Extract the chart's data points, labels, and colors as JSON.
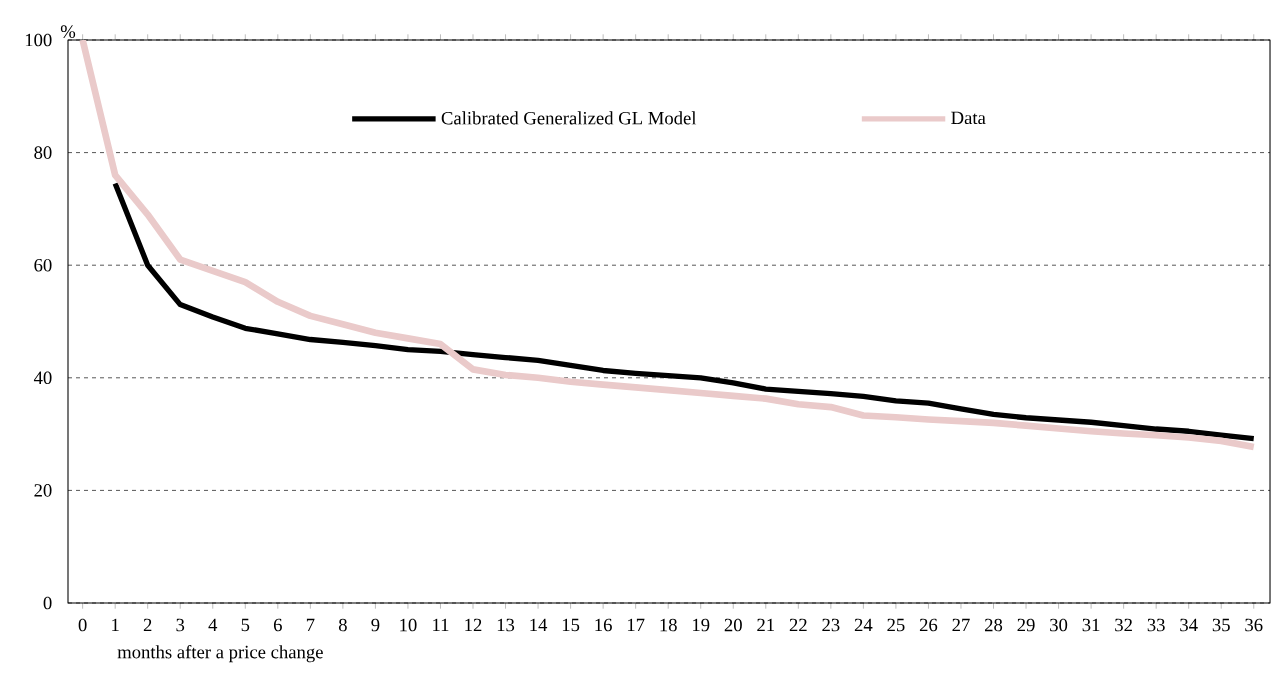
{
  "chart_data": {
    "type": "line",
    "ylabel": "%",
    "xlabel": "months after a price change",
    "categories": [
      "0",
      "1",
      "2",
      "3",
      "4",
      "5",
      "6",
      "7",
      "8",
      "9",
      "10",
      "11",
      "12",
      "13",
      "14",
      "15",
      "16",
      "17",
      "18",
      "19",
      "20",
      "21",
      "22",
      "23",
      "24",
      "25",
      "26",
      "27",
      "28",
      "29",
      "30",
      "31",
      "32",
      "33",
      "34",
      "35",
      "36"
    ],
    "series": [
      {
        "name": "Calibrated Generalized GL Model",
        "color": "#000000",
        "values": [
          null,
          74.5,
          60,
          53,
          50.8,
          48.8,
          47.8,
          46.8,
          46.3,
          45.7,
          45,
          44.7,
          44.1,
          43.6,
          43.1,
          42.2,
          41.3,
          40.8,
          40.4,
          40,
          39.1,
          38,
          37.6,
          37.2,
          36.7,
          35.9,
          35.5,
          34.5,
          33.5,
          32.9,
          32.5,
          32.1,
          31.5,
          30.9,
          30.5,
          29.8,
          29.2
        ]
      },
      {
        "name": "Data",
        "color": "#eacaca",
        "values": [
          100,
          76,
          69,
          61,
          59,
          57,
          53.5,
          51,
          49.5,
          48,
          47,
          46,
          41.5,
          40.5,
          40,
          39.3,
          38.8,
          38.3,
          37.8,
          37.3,
          36.8,
          36.3,
          35.3,
          34.8,
          33.3,
          33,
          32.6,
          32.3,
          32,
          31.5,
          31,
          30.5,
          30.1,
          29.8,
          29.4,
          28.8,
          27.7
        ]
      }
    ],
    "ylim": [
      0,
      100
    ],
    "yticks": [
      0,
      20,
      40,
      60,
      80,
      100
    ],
    "grid": "y",
    "legend": "top",
    "marker": "none",
    "line_style": "solid"
  }
}
